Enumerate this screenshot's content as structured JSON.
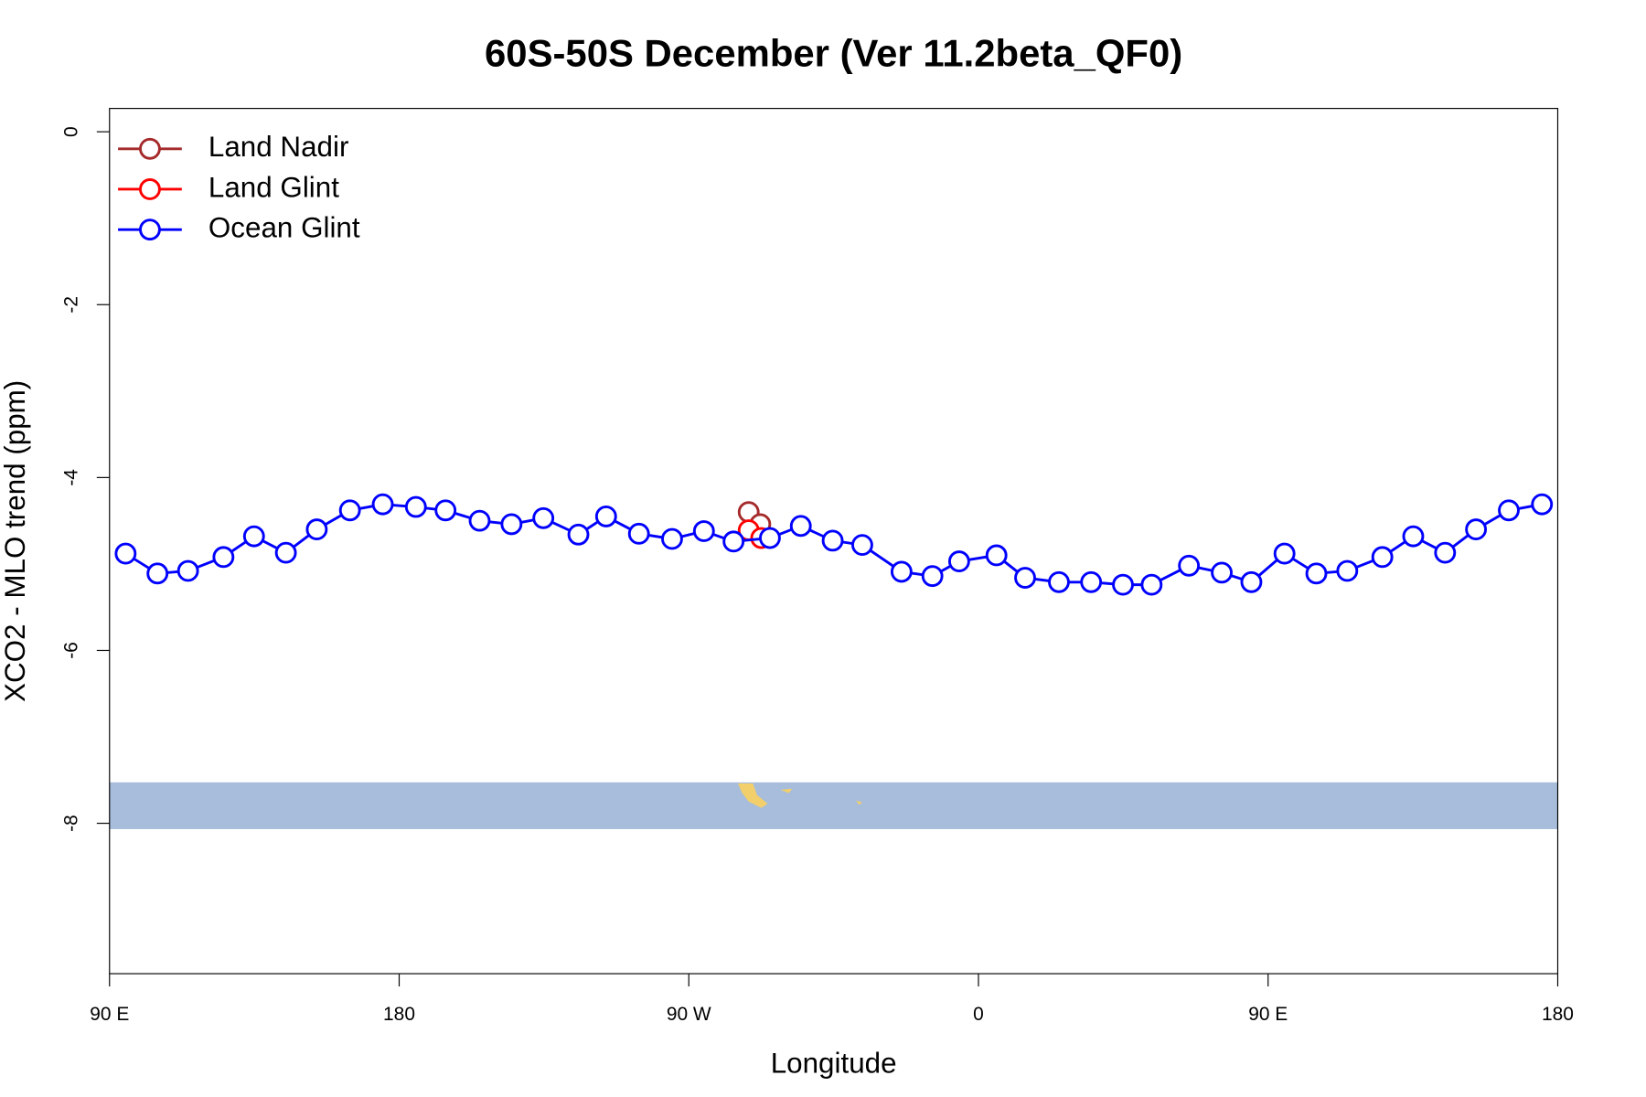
{
  "chart_data": {
    "type": "line",
    "title": "60S-50S December (Ver 11.2beta_QF0)",
    "x_label": "Longitude",
    "y_label": "XCO2 - MLO trend (ppm)",
    "xlim": [
      90,
      540
    ],
    "xticks": [
      {
        "value": 90,
        "label": "90 E"
      },
      180,
      {
        "value": 270,
        "label": "90 W"
      },
      {
        "value": 360,
        "label": "0"
      },
      {
        "value": 450,
        "label": "90 E"
      },
      {
        "value": 540,
        "label": "180"
      }
    ],
    "ylim": [
      -9.74,
      0.27
    ],
    "yticks": [
      0,
      -2,
      -4,
      -6,
      -8
    ],
    "legend": "top-left",
    "series": [
      {
        "name": "Land Nadir",
        "color": "#a52a2a",
        "x": [
          288.6,
          292.2
        ],
        "values": [
          -4.4,
          -4.54
        ]
      },
      {
        "name": "Land Glint",
        "color": "#ff0000",
        "x": [
          288.6,
          292.5
        ],
        "values": [
          -4.61,
          -4.7
        ]
      },
      {
        "name": "Ocean Glint",
        "color": "#0000ff",
        "x": [
          95.0,
          104.9,
          114.4,
          125.4,
          134.9,
          144.8,
          154.4,
          164.7,
          174.9,
          185.2,
          194.4,
          205.0,
          214.9,
          224.8,
          235.7,
          244.3,
          254.5,
          264.8,
          274.7,
          283.9,
          295.2,
          304.8,
          314.7,
          323.9,
          336.1,
          345.7,
          354.0,
          365.6,
          374.5,
          385.0,
          395.0,
          404.9,
          413.8,
          425.4,
          435.6,
          444.8,
          455.1,
          465.0,
          474.6,
          485.5,
          495.1,
          505.0,
          514.6,
          524.8,
          535.1
        ],
        "values": [
          -4.88,
          -5.11,
          -5.08,
          -4.92,
          -4.68,
          -4.87,
          -4.6,
          -4.38,
          -4.31,
          -4.34,
          -4.38,
          -4.5,
          -4.54,
          -4.47,
          -4.66,
          -4.45,
          -4.65,
          -4.71,
          -4.62,
          -4.74,
          -4.7,
          -4.56,
          -4.73,
          -4.78,
          -5.09,
          -5.14,
          -4.97,
          -4.9,
          -5.16,
          -5.21,
          -5.21,
          -5.24,
          -5.24,
          -5.02,
          -5.1,
          -5.21,
          -4.88,
          -5.11,
          -5.08,
          -4.92,
          -4.68,
          -4.87,
          -4.6,
          -4.38,
          -4.31
        ]
      }
    ]
  }
}
